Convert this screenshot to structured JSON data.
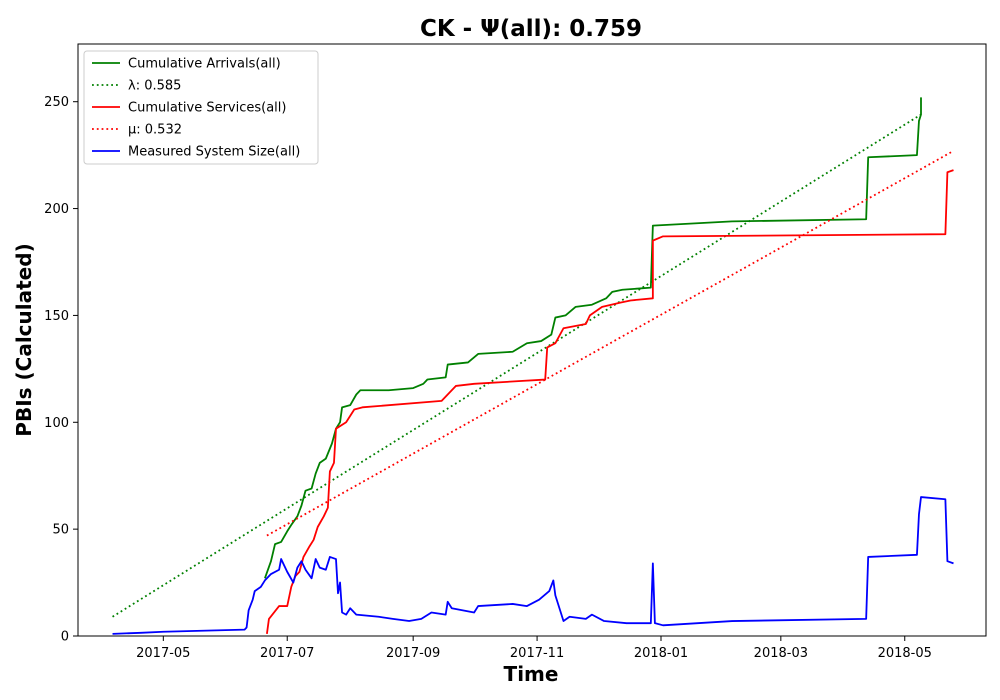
{
  "chart_data": {
    "type": "line",
    "title": "CK -  Ψ(all): 0.759",
    "xlabel": "Time",
    "ylabel": "PBIs (Calculated)",
    "xlim": [
      "2017-03-20",
      "2018-06-10"
    ],
    "ylim": [
      0,
      277
    ],
    "grid": false,
    "legend_position": "top-left",
    "x_ticks": [
      "2017-05",
      "2017-07",
      "2017-09",
      "2017-11",
      "2018-01",
      "2018-03",
      "2018-05"
    ],
    "y_ticks": [
      0,
      50,
      100,
      150,
      200,
      250
    ],
    "series": [
      {
        "name": "Cumulative Arrivals(all)",
        "color": "#008000",
        "style": "solid",
        "points": [
          [
            "2017-06-20",
            27
          ],
          [
            "2017-06-23",
            35
          ],
          [
            "2017-06-25",
            43
          ],
          [
            "2017-06-28",
            44
          ],
          [
            "2017-07-01",
            49
          ],
          [
            "2017-07-03",
            52
          ],
          [
            "2017-07-06",
            56
          ],
          [
            "2017-07-08",
            61
          ],
          [
            "2017-07-10",
            68
          ],
          [
            "2017-07-13",
            69
          ],
          [
            "2017-07-15",
            76
          ],
          [
            "2017-07-17",
            81
          ],
          [
            "2017-07-20",
            83
          ],
          [
            "2017-07-23",
            90
          ],
          [
            "2017-07-25",
            97
          ],
          [
            "2017-07-27",
            100
          ],
          [
            "2017-07-28",
            107
          ],
          [
            "2017-08-01",
            108
          ],
          [
            "2017-08-04",
            113
          ],
          [
            "2017-08-06",
            115
          ],
          [
            "2017-08-20",
            115
          ],
          [
            "2017-09-01",
            116
          ],
          [
            "2017-09-06",
            118
          ],
          [
            "2017-09-08",
            120
          ],
          [
            "2017-09-17",
            121
          ],
          [
            "2017-09-18",
            127
          ],
          [
            "2017-09-28",
            128
          ],
          [
            "2017-10-03",
            132
          ],
          [
            "2017-10-20",
            133
          ],
          [
            "2017-10-27",
            137
          ],
          [
            "2017-11-03",
            138
          ],
          [
            "2017-11-08",
            141
          ],
          [
            "2017-11-10",
            149
          ],
          [
            "2017-11-15",
            150
          ],
          [
            "2017-11-20",
            154
          ],
          [
            "2017-11-28",
            155
          ],
          [
            "2017-12-05",
            158
          ],
          [
            "2017-12-08",
            161
          ],
          [
            "2017-12-13",
            162
          ],
          [
            "2017-12-27",
            163
          ],
          [
            "2017-12-28",
            192
          ],
          [
            "2018-02-05",
            194
          ],
          [
            "2018-04-12",
            195
          ],
          [
            "2018-04-13",
            224
          ],
          [
            "2018-05-07",
            225
          ],
          [
            "2018-05-08",
            241
          ],
          [
            "2018-05-09",
            244
          ],
          [
            "2018-05-09",
            252
          ]
        ]
      },
      {
        "name": "λ: 0.585",
        "color": "#008000",
        "style": "dotted",
        "points": [
          [
            "2017-04-06",
            9
          ],
          [
            "2018-05-09",
            244
          ]
        ]
      },
      {
        "name": "Cumulative Services(all)",
        "color": "#ff0000",
        "style": "solid",
        "points": [
          [
            "2017-06-21",
            1
          ],
          [
            "2017-06-22",
            8
          ],
          [
            "2017-06-27",
            14
          ],
          [
            "2017-07-01",
            14
          ],
          [
            "2017-07-03",
            23
          ],
          [
            "2017-07-05",
            28
          ],
          [
            "2017-07-07",
            30
          ],
          [
            "2017-07-09",
            37
          ],
          [
            "2017-07-12",
            42
          ],
          [
            "2017-07-14",
            45
          ],
          [
            "2017-07-16",
            51
          ],
          [
            "2017-07-19",
            56
          ],
          [
            "2017-07-21",
            60
          ],
          [
            "2017-07-22",
            77
          ],
          [
            "2017-07-24",
            81
          ],
          [
            "2017-07-25",
            97
          ],
          [
            "2017-07-30",
            100
          ],
          [
            "2017-08-03",
            106
          ],
          [
            "2017-08-07",
            107
          ],
          [
            "2017-09-15",
            110
          ],
          [
            "2017-09-18",
            113
          ],
          [
            "2017-09-22",
            117
          ],
          [
            "2017-10-01",
            118
          ],
          [
            "2017-11-05",
            120
          ],
          [
            "2017-11-06",
            135
          ],
          [
            "2017-11-10",
            137
          ],
          [
            "2017-11-14",
            144
          ],
          [
            "2017-11-25",
            146
          ],
          [
            "2017-11-27",
            150
          ],
          [
            "2017-12-03",
            154
          ],
          [
            "2017-12-12",
            156
          ],
          [
            "2017-12-17",
            157
          ],
          [
            "2017-12-28",
            158
          ],
          [
            "2017-12-28",
            185
          ],
          [
            "2018-01-02",
            187
          ],
          [
            "2018-05-21",
            188
          ],
          [
            "2018-05-22",
            217
          ],
          [
            "2018-05-25",
            218
          ]
        ]
      },
      {
        "name": "μ: 0.532",
        "color": "#ff0000",
        "style": "dotted",
        "points": [
          [
            "2017-06-21",
            47
          ],
          [
            "2018-05-25",
            227
          ]
        ]
      },
      {
        "name": "Measured System Size(all)",
        "color": "#0000ff",
        "style": "solid",
        "points": [
          [
            "2017-04-06",
            1
          ],
          [
            "2017-04-20",
            1.5
          ],
          [
            "2017-05-01",
            2
          ],
          [
            "2017-06-10",
            3
          ],
          [
            "2017-06-11",
            4
          ],
          [
            "2017-06-12",
            12
          ],
          [
            "2017-06-14",
            17
          ],
          [
            "2017-06-15",
            21
          ],
          [
            "2017-06-18",
            23
          ],
          [
            "2017-06-20",
            26
          ],
          [
            "2017-06-23",
            29
          ],
          [
            "2017-06-27",
            31
          ],
          [
            "2017-06-28",
            36
          ],
          [
            "2017-07-01",
            30
          ],
          [
            "2017-07-04",
            25
          ],
          [
            "2017-07-06",
            32
          ],
          [
            "2017-07-08",
            35
          ],
          [
            "2017-07-10",
            31
          ],
          [
            "2017-07-13",
            27
          ],
          [
            "2017-07-15",
            36
          ],
          [
            "2017-07-17",
            32
          ],
          [
            "2017-07-20",
            31
          ],
          [
            "2017-07-22",
            37
          ],
          [
            "2017-07-25",
            36
          ],
          [
            "2017-07-26",
            20
          ],
          [
            "2017-07-27",
            25
          ],
          [
            "2017-07-28",
            11
          ],
          [
            "2017-07-30",
            10
          ],
          [
            "2017-08-01",
            13
          ],
          [
            "2017-08-04",
            10
          ],
          [
            "2017-08-15",
            9
          ],
          [
            "2017-08-22",
            8
          ],
          [
            "2017-08-30",
            7
          ],
          [
            "2017-09-05",
            8
          ],
          [
            "2017-09-10",
            11
          ],
          [
            "2017-09-17",
            10
          ],
          [
            "2017-09-18",
            16
          ],
          [
            "2017-09-20",
            13
          ],
          [
            "2017-10-01",
            11
          ],
          [
            "2017-10-03",
            14
          ],
          [
            "2017-10-20",
            15
          ],
          [
            "2017-10-27",
            14
          ],
          [
            "2017-11-02",
            17
          ],
          [
            "2017-11-07",
            21
          ],
          [
            "2017-11-09",
            26
          ],
          [
            "2017-11-10",
            19
          ],
          [
            "2017-11-14",
            7
          ],
          [
            "2017-11-17",
            9
          ],
          [
            "2017-11-25",
            8
          ],
          [
            "2017-11-28",
            10
          ],
          [
            "2017-12-04",
            7
          ],
          [
            "2017-12-15",
            6
          ],
          [
            "2017-12-27",
            6
          ],
          [
            "2017-12-28",
            34
          ],
          [
            "2017-12-29",
            6
          ],
          [
            "2018-01-02",
            5
          ],
          [
            "2018-02-05",
            7
          ],
          [
            "2018-04-12",
            8
          ],
          [
            "2018-04-13",
            37
          ],
          [
            "2018-05-07",
            38
          ],
          [
            "2018-05-08",
            57
          ],
          [
            "2018-05-09",
            65
          ],
          [
            "2018-05-21",
            64
          ],
          [
            "2018-05-22",
            35
          ],
          [
            "2018-05-25",
            34
          ]
        ]
      }
    ]
  }
}
